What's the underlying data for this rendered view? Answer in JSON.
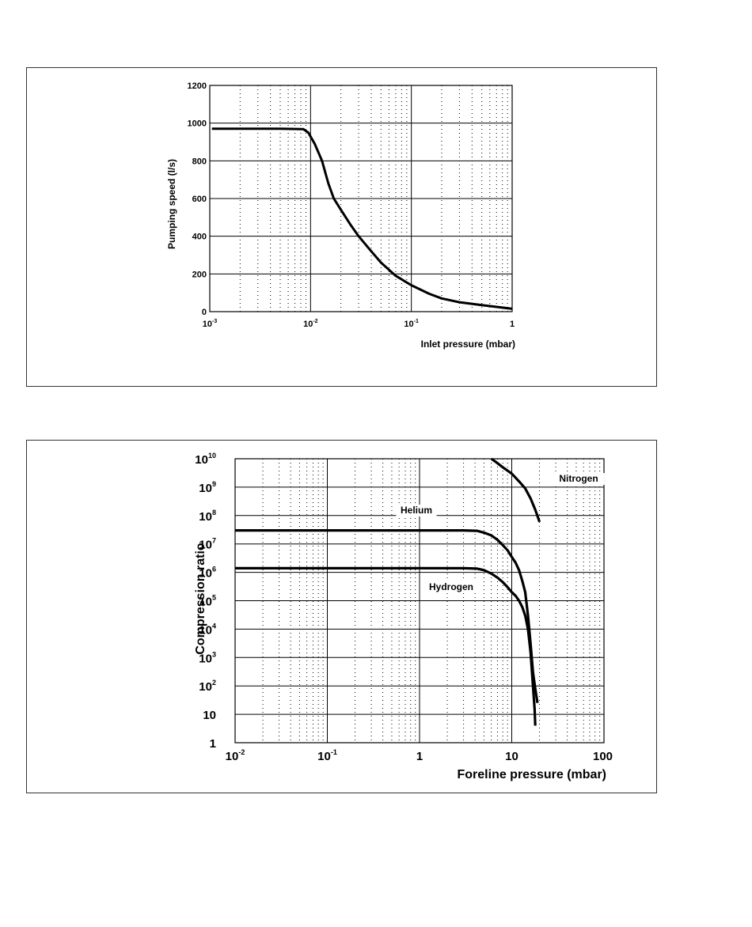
{
  "chart_data": [
    {
      "type": "line",
      "title": "",
      "xlabel": "Inlet pressure (mbar)",
      "ylabel": "Pumping speed (l/s)",
      "xscale": "log",
      "xlim": [
        0.001,
        1
      ],
      "ylim": [
        0,
        1200
      ],
      "x_ticks": [
        {
          "base": "10",
          "exp": "-3"
        },
        {
          "base": "10",
          "exp": "-2"
        },
        {
          "base": "10",
          "exp": "-1"
        },
        {
          "base": "1",
          "exp": ""
        }
      ],
      "y_ticks": [
        "0",
        "200",
        "400",
        "600",
        "800",
        "1000",
        "1200"
      ],
      "grid": true,
      "series": [
        {
          "x": [
            0.00105,
            0.002,
            0.005,
            0.0085,
            0.0095,
            0.011,
            0.013,
            0.015,
            0.017,
            0.02,
            0.025,
            0.03,
            0.04,
            0.05,
            0.07,
            0.1,
            0.15,
            0.2,
            0.3,
            0.5,
            0.7,
            1.0
          ],
          "y": [
            970,
            970,
            970,
            968,
            950,
            890,
            800,
            680,
            600,
            540,
            460,
            400,
            320,
            260,
            190,
            140,
            95,
            70,
            50,
            35,
            25,
            15
          ]
        }
      ]
    },
    {
      "type": "line",
      "title": "",
      "xlabel": "Foreline pressure (mbar)",
      "ylabel": "Compression ratio",
      "xscale": "log",
      "yscale": "log",
      "xlim": [
        0.01,
        100
      ],
      "ylim": [
        1,
        10000000000
      ],
      "x_ticks": [
        {
          "base": "10",
          "exp": "-2"
        },
        {
          "base": "10",
          "exp": "-1"
        },
        {
          "base": "1",
          "exp": ""
        },
        {
          "base": "10",
          "exp": ""
        },
        {
          "base": "100",
          "exp": ""
        }
      ],
      "y_ticks": [
        {
          "base": "1",
          "exp": ""
        },
        {
          "base": "10",
          "exp": ""
        },
        {
          "base": "10",
          "exp": "2"
        },
        {
          "base": "10",
          "exp": "3"
        },
        {
          "base": "10",
          "exp": "4"
        },
        {
          "base": "10",
          "exp": "5"
        },
        {
          "base": "10",
          "exp": "6"
        },
        {
          "base": "10",
          "exp": "7"
        },
        {
          "base": "10",
          "exp": "8"
        },
        {
          "base": "10",
          "exp": "9"
        },
        {
          "base": "10",
          "exp": "10"
        }
      ],
      "grid": true,
      "series": [
        {
          "name": "Nitrogen",
          "x": [
            6,
            7,
            8,
            10,
            12,
            14,
            16,
            18,
            20
          ],
          "y": [
            10000000000,
            7000000000,
            5000000000,
            3000000000,
            1600000000,
            900000000,
            400000000,
            160000000,
            60000000
          ]
        },
        {
          "name": "Helium",
          "x": [
            0.01,
            1,
            3,
            4.2,
            5,
            6,
            7,
            8,
            9,
            10,
            11,
            12,
            13,
            14,
            15,
            16,
            17,
            18,
            19
          ],
          "y": [
            30000000,
            30000000,
            30000000,
            29000000,
            25000000,
            20000000,
            14000000,
            9000000,
            6000000,
            3500000,
            2200000,
            1200000,
            500000,
            200000,
            30000,
            3000,
            300,
            80,
            25
          ]
        },
        {
          "name": "Hydrogen",
          "x": [
            0.01,
            1,
            3,
            4.2,
            5,
            6,
            7,
            8,
            9,
            10,
            11,
            12,
            13,
            14,
            15,
            16,
            17,
            17.7,
            18
          ],
          "y": [
            1400000,
            1400000,
            1400000,
            1350000,
            1200000,
            900000,
            650000,
            450000,
            300000,
            200000,
            150000,
            100000,
            60000,
            30000,
            10000,
            1500,
            100,
            15,
            4
          ]
        }
      ]
    }
  ]
}
